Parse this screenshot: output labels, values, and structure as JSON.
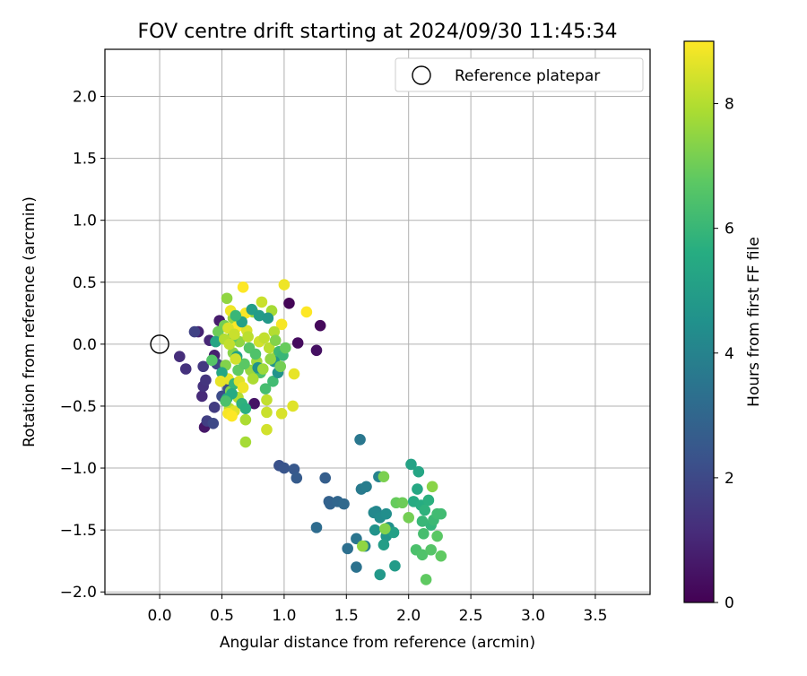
{
  "chart_data": {
    "type": "scatter",
    "title": "FOV centre drift starting at 2024/09/30 11:45:34",
    "xlabel": "Angular distance from reference (arcmin)",
    "ylabel": "Rotation from reference (arcmin)",
    "xlim": [
      -0.44,
      3.94
    ],
    "ylim": [
      -2.02,
      2.38
    ],
    "xticks": [
      "0.0",
      "0.5",
      "1.0",
      "1.5",
      "2.0",
      "2.5",
      "3.0",
      "3.5"
    ],
    "xtick_values": [
      0.0,
      0.5,
      1.0,
      1.5,
      2.0,
      2.5,
      3.0,
      3.5
    ],
    "yticks": [
      "−2.0",
      "−1.5",
      "−1.0",
      "−0.5",
      "0.0",
      "0.5",
      "1.0",
      "1.5",
      "2.0"
    ],
    "ytick_values": [
      -2.0,
      -1.5,
      -1.0,
      -0.5,
      0.0,
      0.5,
      1.0,
      1.5,
      2.0
    ],
    "grid": true,
    "legend": {
      "position": "upper right",
      "entries": [
        "Reference platepar"
      ]
    },
    "reference_point": {
      "x": 0.0,
      "y": 0.0,
      "marker": "open circle"
    },
    "colorbar": {
      "label": "Hours from first FF file",
      "colormap": "viridis",
      "range": [
        0,
        9.0
      ],
      "ticks": [
        "0",
        "2",
        "4",
        "6",
        "8"
      ],
      "tick_values": [
        0,
        2,
        4,
        6,
        8
      ]
    },
    "series": [
      {
        "points": [
          [
            1.04,
            0.33,
            0.1
          ],
          [
            1.29,
            0.15,
            0.2
          ],
          [
            1.11,
            0.01,
            0.3
          ],
          [
            1.26,
            -0.05,
            0.4
          ],
          [
            0.76,
            -0.48,
            0.5
          ],
          [
            0.36,
            -0.67,
            0.6
          ],
          [
            0.48,
            0.19,
            0.7
          ],
          [
            0.44,
            -0.09,
            0.8
          ],
          [
            0.31,
            0.1,
            0.9
          ],
          [
            0.4,
            0.03,
            1.0
          ],
          [
            0.52,
            -0.28,
            1.0
          ],
          [
            0.34,
            -0.42,
            1.1
          ],
          [
            0.16,
            -0.1,
            1.2
          ],
          [
            0.21,
            -0.2,
            1.3
          ],
          [
            0.35,
            -0.34,
            1.3
          ],
          [
            0.37,
            -0.29,
            1.4
          ],
          [
            0.35,
            -0.18,
            1.5
          ],
          [
            0.44,
            -0.51,
            1.6
          ],
          [
            0.38,
            -0.62,
            1.7
          ],
          [
            0.28,
            0.1,
            1.8
          ],
          [
            0.46,
            -0.16,
            1.9
          ],
          [
            0.43,
            -0.64,
            2.0
          ],
          [
            0.5,
            -0.42,
            2.1
          ],
          [
            0.55,
            -0.36,
            2.2
          ],
          [
            0.96,
            -0.98,
            2.3
          ],
          [
            1.0,
            -1.0,
            2.4
          ],
          [
            1.08,
            -1.01,
            2.5
          ],
          [
            1.1,
            -1.08,
            2.6
          ],
          [
            1.33,
            -1.08,
            2.7
          ],
          [
            1.36,
            -1.27,
            2.8
          ],
          [
            1.37,
            -1.29,
            2.9
          ],
          [
            1.43,
            -1.27,
            3.0
          ],
          [
            1.48,
            -1.29,
            3.1
          ],
          [
            1.26,
            -1.48,
            3.2
          ],
          [
            1.51,
            -1.65,
            3.3
          ],
          [
            1.58,
            -1.8,
            3.4
          ],
          [
            1.58,
            -1.57,
            3.5
          ],
          [
            1.61,
            -0.77,
            3.6
          ],
          [
            1.62,
            -1.17,
            3.7
          ],
          [
            1.66,
            -1.15,
            3.8
          ],
          [
            1.65,
            -1.63,
            3.9
          ],
          [
            1.76,
            -1.07,
            4.0
          ],
          [
            1.74,
            -1.35,
            4.1
          ],
          [
            1.72,
            -1.36,
            4.2
          ],
          [
            1.77,
            -1.4,
            4.3
          ],
          [
            1.82,
            -1.37,
            4.4
          ],
          [
            1.84,
            -1.48,
            4.5
          ],
          [
            1.73,
            -1.5,
            4.6
          ],
          [
            1.82,
            -1.55,
            4.7
          ],
          [
            1.77,
            -1.86,
            4.8
          ],
          [
            1.89,
            -1.79,
            4.9
          ],
          [
            1.8,
            -1.62,
            5.0
          ],
          [
            1.88,
            -1.52,
            5.1
          ],
          [
            2.02,
            -0.97,
            5.2
          ],
          [
            2.08,
            -1.03,
            5.3
          ],
          [
            2.07,
            -1.17,
            5.4
          ],
          [
            2.04,
            -1.27,
            5.5
          ],
          [
            2.1,
            -1.3,
            5.6
          ],
          [
            2.16,
            -1.26,
            5.7
          ],
          [
            2.13,
            -1.34,
            5.8
          ],
          [
            2.18,
            -1.46,
            5.9
          ],
          [
            2.11,
            -1.43,
            6.0
          ],
          [
            2.2,
            -1.42,
            6.1
          ],
          [
            2.23,
            -1.37,
            6.2
          ],
          [
            2.26,
            -1.37,
            6.2
          ],
          [
            2.12,
            -1.53,
            6.3
          ],
          [
            2.06,
            -1.66,
            6.4
          ],
          [
            2.11,
            -1.7,
            6.5
          ],
          [
            2.18,
            -1.66,
            6.6
          ],
          [
            2.23,
            -1.55,
            6.7
          ],
          [
            2.14,
            -1.9,
            6.8
          ],
          [
            2.26,
            -1.71,
            6.8
          ],
          [
            1.9,
            -1.28,
            6.9
          ],
          [
            1.95,
            -1.28,
            7.0
          ],
          [
            2.0,
            -1.4,
            7.1
          ],
          [
            1.8,
            -1.07,
            7.2
          ],
          [
            1.81,
            -1.49,
            7.3
          ],
          [
            2.19,
            -1.15,
            7.4
          ],
          [
            1.63,
            -1.63,
            7.5
          ],
          [
            0.54,
            0.37,
            7.5
          ],
          [
            0.59,
            0.21,
            7.6
          ],
          [
            0.75,
            0.26,
            7.7
          ],
          [
            0.69,
            -0.79,
            7.8
          ],
          [
            0.69,
            -0.61,
            7.9
          ],
          [
            0.63,
            -0.43,
            8.0
          ],
          [
            0.56,
            -0.52,
            8.1
          ],
          [
            0.86,
            -0.45,
            8.2
          ],
          [
            0.86,
            -0.55,
            8.3
          ],
          [
            0.86,
            -0.69,
            8.4
          ],
          [
            0.98,
            -0.56,
            8.5
          ],
          [
            1.07,
            -0.5,
            8.6
          ],
          [
            1.08,
            -0.24,
            8.7
          ],
          [
            1.0,
            0.48,
            8.8
          ],
          [
            0.98,
            0.16,
            8.9
          ],
          [
            1.18,
            0.26,
            9.0
          ],
          [
            0.67,
            0.46,
            9.0
          ],
          [
            0.62,
            0.14,
            9.0
          ],
          [
            0.69,
            0.25,
            8.9
          ],
          [
            0.57,
            0.27,
            8.8
          ],
          [
            0.55,
            -0.28,
            8.7
          ],
          [
            0.6,
            -0.54,
            8.6
          ],
          [
            0.7,
            0.11,
            8.5
          ],
          [
            0.8,
            0.02,
            8.4
          ],
          [
            0.82,
            0.34,
            8.3
          ],
          [
            0.84,
            0.05,
            8.2
          ],
          [
            0.88,
            -0.03,
            8.1
          ],
          [
            0.92,
            0.1,
            8.0
          ],
          [
            0.94,
            -0.1,
            7.9
          ],
          [
            0.9,
            0.27,
            7.8
          ],
          [
            0.78,
            -0.14,
            7.7
          ],
          [
            0.73,
            -0.21,
            7.6
          ],
          [
            0.64,
            0.02,
            7.5
          ],
          [
            0.59,
            -0.07,
            7.4
          ],
          [
            0.53,
            -0.17,
            7.3
          ],
          [
            0.57,
            -0.38,
            7.2
          ],
          [
            0.52,
            0.15,
            7.1
          ],
          [
            0.47,
            0.1,
            7.0
          ],
          [
            0.58,
            0.05,
            6.9
          ],
          [
            0.63,
            -0.21,
            6.8
          ],
          [
            0.68,
            -0.16,
            6.7
          ],
          [
            0.72,
            -0.03,
            6.6
          ],
          [
            0.77,
            -0.08,
            6.5
          ],
          [
            0.81,
            -0.23,
            6.4
          ],
          [
            0.85,
            -0.36,
            6.3
          ],
          [
            0.91,
            -0.3,
            6.2
          ],
          [
            0.96,
            -0.06,
            6.1
          ],
          [
            0.99,
            -0.09,
            6.0
          ],
          [
            0.6,
            -0.32,
            5.9
          ],
          [
            0.66,
            -0.48,
            5.8
          ],
          [
            0.69,
            -0.52,
            5.7
          ],
          [
            0.54,
            -0.44,
            5.6
          ],
          [
            0.58,
            -0.4,
            5.5
          ],
          [
            0.5,
            -0.23,
            5.4
          ],
          [
            0.45,
            0.02,
            5.3
          ],
          [
            0.62,
            -0.1,
            5.2
          ],
          [
            0.66,
            0.18,
            5.1
          ],
          [
            0.74,
            0.28,
            5.0
          ],
          [
            0.8,
            0.23,
            4.9
          ],
          [
            0.87,
            0.21,
            4.8
          ],
          [
            0.92,
            -0.14,
            4.7
          ],
          [
            0.95,
            -0.23,
            4.6
          ],
          [
            0.79,
            -0.19,
            4.5
          ],
          [
            0.52,
            0.04,
            8.0
          ],
          [
            0.56,
            0.0,
            8.2
          ],
          [
            0.61,
            -0.12,
            8.4
          ],
          [
            0.64,
            -0.3,
            8.6
          ],
          [
            0.67,
            -0.35,
            8.8
          ],
          [
            0.71,
            0.06,
            8.1
          ],
          [
            0.75,
            -0.28,
            7.9
          ],
          [
            0.83,
            -0.2,
            7.7
          ],
          [
            0.89,
            -0.12,
            7.5
          ],
          [
            0.93,
            0.03,
            7.3
          ],
          [
            0.97,
            -0.18,
            7.1
          ],
          [
            1.01,
            -0.03,
            6.9
          ],
          [
            0.55,
            -0.56,
            8.9
          ],
          [
            0.58,
            -0.58,
            9.0
          ],
          [
            0.49,
            -0.3,
            8.7
          ],
          [
            0.53,
            -0.46,
            6.4
          ],
          [
            0.42,
            -0.13,
            6.6
          ],
          [
            0.61,
            0.23,
            6.0
          ],
          [
            0.55,
            0.13,
            8.5
          ],
          [
            0.6,
            0.08,
            8.3
          ]
        ]
      }
    ]
  }
}
